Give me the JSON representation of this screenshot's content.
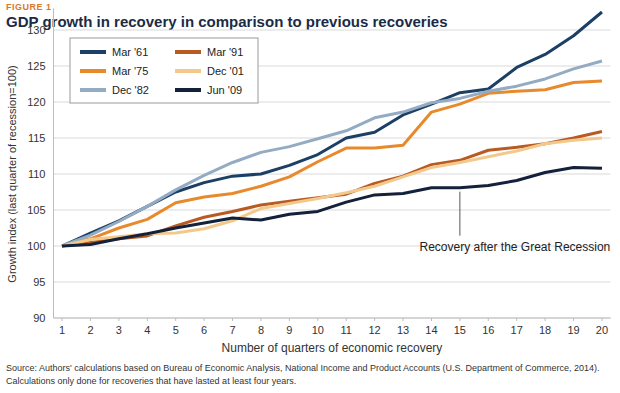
{
  "chart_data": {
    "type": "line",
    "figure_label": "FIGURE 1",
    "title": "GDP growth in recovery in comparison to previous recoveries",
    "x_label": "Number of quarters of economic recovery",
    "y_label": "Growth index (last quarter of recession=100)",
    "x": [
      1,
      2,
      3,
      4,
      5,
      6,
      7,
      8,
      9,
      10,
      11,
      12,
      13,
      14,
      15,
      16,
      17,
      18,
      19,
      20
    ],
    "xlim": [
      0.7,
      20.3
    ],
    "xticks": [
      1,
      2,
      3,
      4,
      5,
      6,
      7,
      8,
      9,
      10,
      11,
      12,
      13,
      14,
      15,
      16,
      17,
      18,
      19,
      20
    ],
    "ylim": [
      90,
      133
    ],
    "yticks": [
      90,
      95,
      100,
      105,
      110,
      115,
      120,
      125,
      130
    ],
    "grid": true,
    "legend": "upper left",
    "series": [
      {
        "name": "Mar '61",
        "color": "#1c3f66",
        "values": [
          100,
          101.8,
          103.5,
          105.5,
          107.5,
          108.8,
          109.7,
          110,
          111.2,
          112.7,
          115,
          115.8,
          118.2,
          119.7,
          121.3,
          121.8,
          124.8,
          126.6,
          129.2,
          132.5
        ]
      },
      {
        "name": "Mar '75",
        "color": "#e8892b",
        "values": [
          100,
          101,
          102.5,
          103.7,
          106,
          106.8,
          107.3,
          108.3,
          109.6,
          111.7,
          113.6,
          113.6,
          114,
          118.6,
          119.7,
          121.2,
          121.5,
          121.7,
          122.7,
          122.9
        ]
      },
      {
        "name": "Dec '82",
        "color": "#94abc4",
        "values": [
          100,
          101.5,
          103.4,
          105.5,
          107.8,
          109.8,
          111.6,
          113,
          113.8,
          114.9,
          116,
          117.8,
          118.6,
          119.9,
          120.5,
          121.5,
          122.2,
          123.2,
          124.6,
          125.7
        ]
      },
      {
        "name": "Mar '91",
        "color": "#b85a22",
        "values": [
          100,
          100.5,
          101,
          101.4,
          102.8,
          104,
          104.8,
          105.7,
          106.2,
          106.7,
          107.2,
          108.7,
          109.7,
          111.3,
          111.9,
          113.3,
          113.7,
          114.2,
          115,
          115.9
        ]
      },
      {
        "name": "Dec '01",
        "color": "#f3c98b",
        "values": [
          100,
          100.9,
          101.3,
          101.7,
          101.8,
          102.4,
          103.5,
          105.2,
          105.9,
          106.6,
          107.4,
          108.3,
          109.6,
          110.9,
          111.6,
          112.4,
          113.2,
          114.2,
          114.7,
          115
        ]
      },
      {
        "name": "Jun '09",
        "color": "#14213a",
        "values": [
          100,
          100.2,
          101,
          101.7,
          102.5,
          103.2,
          103.9,
          103.6,
          104.4,
          104.8,
          106.1,
          107.1,
          107.3,
          108.1,
          108.1,
          108.4,
          109.1,
          110.2,
          110.9,
          110.8
        ]
      }
    ],
    "annotations": [
      {
        "text": "Recovery after the Great Recession",
        "x": 15
      }
    ],
    "source": [
      "Source: Authors' calculations based on Bureau of Economic Analysis, National Income and Product Accounts (U.S. Department of Commerce, 2014).",
      "Calculations only done for recoveries that have lasted at least four years."
    ]
  }
}
